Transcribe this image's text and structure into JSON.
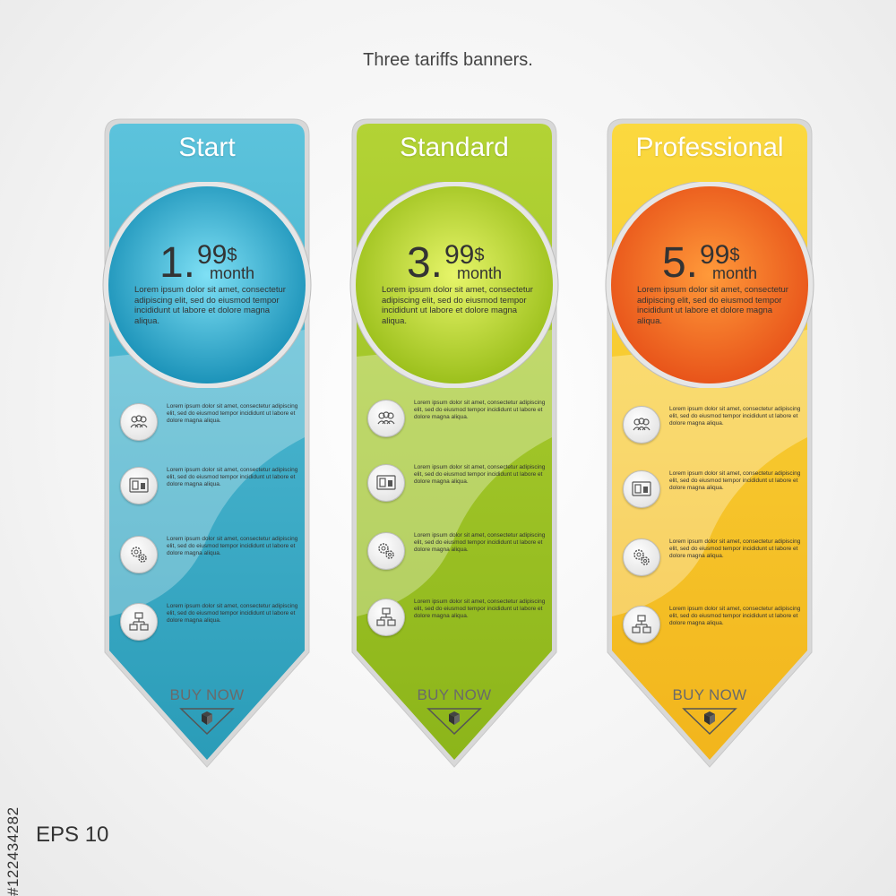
{
  "headline": "Three tariffs banners.",
  "eps_label": "EPS 10",
  "stock_id": "#122434282",
  "cards": [
    {
      "title": "Start",
      "price_whole": "1.",
      "price_cents": "99",
      "currency": "$",
      "period": "month",
      "description": "Lorem ipsum dolor sit amet, consectetur adipiscing elit, sed do eiusmod tempor incididunt ut labore et dolore magna aliqua.",
      "features": [
        {
          "icon": "people-icon",
          "text": "Lorem ipsum dolor sit amet, consectetur adipiscing elit, sed do eiusmod tempor incididunt ut labore et dolore magna aliqua."
        },
        {
          "icon": "devices-icon",
          "text": "Lorem ipsum dolor sit amet, consectetur adipiscing elit, sed do eiusmod tempor incididunt ut labore et dolore magna aliqua."
        },
        {
          "icon": "gears-icon",
          "text": "Lorem ipsum dolor sit amet, consectetur adipiscing elit, sed do eiusmod tempor incididunt ut labore et dolore magna aliqua."
        },
        {
          "icon": "network-icon",
          "text": "Lorem ipsum dolor sit amet, consectetur adipiscing elit, sed do eiusmod tempor incididunt ut labore et dolore magna aliqua."
        }
      ],
      "buy_label": "BUY NOW",
      "color_light": "#5cc3dc",
      "color_dark": "#2a9cb8",
      "circle_inner": "#7fe0f5",
      "circle_outer": "#1c93b9"
    },
    {
      "title": "Standard",
      "price_whole": "3.",
      "price_cents": "99",
      "currency": "$",
      "period": "month",
      "description": "Lorem ipsum dolor sit amet, consectetur adipiscing elit, sed do eiusmod tempor incididunt ut labore et dolore magna aliqua.",
      "features": [
        {
          "icon": "people-icon",
          "text": "Lorem ipsum dolor sit amet, consectetur adipiscing elit, sed do eiusmod tempor incididunt ut labore et dolore magna aliqua."
        },
        {
          "icon": "devices-icon",
          "text": "Lorem ipsum dolor sit amet, consectetur adipiscing elit, sed do eiusmod tempor incididunt ut labore et dolore magna aliqua."
        },
        {
          "icon": "gears-icon",
          "text": "Lorem ipsum dolor sit amet, consectetur adipiscing elit, sed do eiusmod tempor incididunt ut labore et dolore magna aliqua."
        },
        {
          "icon": "network-icon",
          "text": "Lorem ipsum dolor sit amet, consectetur adipiscing elit, sed do eiusmod tempor incididunt ut labore et dolore magna aliqua."
        }
      ],
      "buy_label": "BUY NOW",
      "color_light": "#b3d335",
      "color_dark": "#8cb51a",
      "circle_inner": "#e7f56a",
      "circle_outer": "#9cc01c"
    },
    {
      "title": "Professional",
      "price_whole": "5.",
      "price_cents": "99",
      "currency": "$",
      "period": "month",
      "description": "Lorem ipsum dolor sit amet, consectetur adipiscing elit, sed do eiusmod tempor incididunt ut labore et dolore magna aliqua.",
      "features": [
        {
          "icon": "people-icon",
          "text": "Lorem ipsum dolor sit amet, consectetur adipiscing elit, sed do eiusmod tempor incididunt ut labore et dolore magna aliqua."
        },
        {
          "icon": "devices-icon",
          "text": "Lorem ipsum dolor sit amet, consectetur adipiscing elit, sed do eiusmod tempor incididunt ut labore et dolore magna aliqua."
        },
        {
          "icon": "gears-icon",
          "text": "Lorem ipsum dolor sit amet, consectetur adipiscing elit, sed do eiusmod tempor incididunt ut labore et dolore magna aliqua."
        },
        {
          "icon": "network-icon",
          "text": "Lorem ipsum dolor sit amet, consectetur adipiscing elit, sed do eiusmod tempor incididunt ut labore et dolore magna aliqua."
        }
      ],
      "buy_label": "BUY NOW",
      "color_light": "#fbd93f",
      "color_dark": "#f2b51c",
      "circle_inner": "#ff9a3a",
      "circle_outer": "#e8541a"
    }
  ]
}
